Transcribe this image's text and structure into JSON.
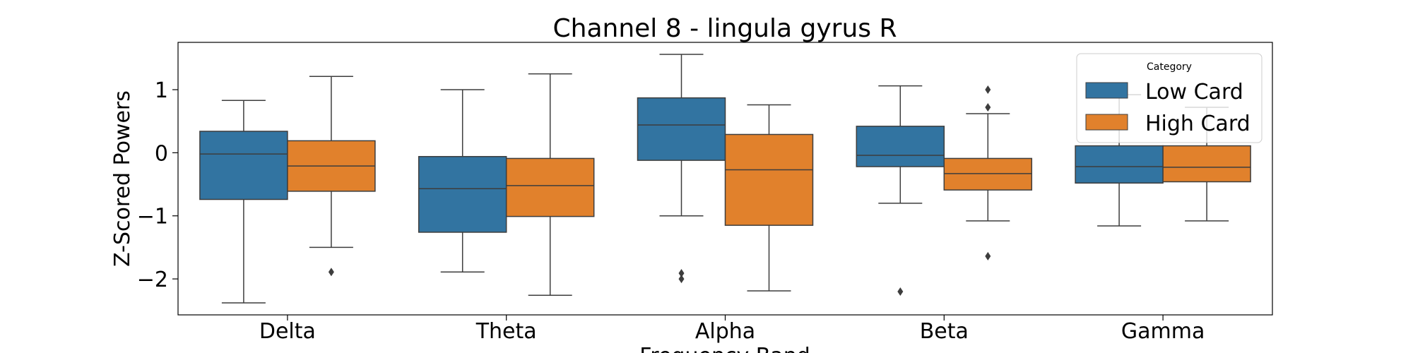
{
  "chart_data": {
    "type": "boxplot",
    "title": "Channel 8 - lingula gyrus R",
    "xlabel": "Frequency Band",
    "ylabel": "Z-Scored Powers",
    "ylim": [
      -2.57,
      1.75
    ],
    "yticks": [
      1,
      0,
      -1,
      -2
    ],
    "ytick_labels": [
      "1",
      "0",
      "−1",
      "−2"
    ],
    "categories": [
      "Delta",
      "Theta",
      "Alpha",
      "Beta",
      "Gamma"
    ],
    "legend": {
      "title": "Category",
      "placement": "upper right"
    },
    "series": [
      {
        "name": "Low Card",
        "color": "#3274a1",
        "boxes": [
          {
            "whisker_low": -2.38,
            "q1": -0.74,
            "median": -0.02,
            "q3": 0.34,
            "whisker_high": 0.83,
            "outliers": []
          },
          {
            "whisker_low": -1.89,
            "q1": -1.26,
            "median": -0.57,
            "q3": -0.06,
            "whisker_high": 1.0,
            "outliers": []
          },
          {
            "whisker_low": -1.0,
            "q1": -0.12,
            "median": 0.44,
            "q3": 0.87,
            "whisker_high": 1.56,
            "outliers": [
              -1.91,
              -2.0
            ]
          },
          {
            "whisker_low": -0.8,
            "q1": -0.22,
            "median": -0.04,
            "q3": 0.42,
            "whisker_high": 1.06,
            "outliers": [
              -2.2
            ]
          },
          {
            "whisker_low": -1.16,
            "q1": -0.48,
            "median": -0.22,
            "q3": 0.11,
            "whisker_high": 0.92,
            "outliers": []
          }
        ]
      },
      {
        "name": "High Card",
        "color": "#e1812c",
        "boxes": [
          {
            "whisker_low": -1.5,
            "q1": -0.61,
            "median": -0.21,
            "q3": 0.19,
            "whisker_high": 1.21,
            "outliers": [
              -1.89
            ]
          },
          {
            "whisker_low": -2.26,
            "q1": -1.01,
            "median": -0.52,
            "q3": -0.09,
            "whisker_high": 1.25,
            "outliers": []
          },
          {
            "whisker_low": -2.19,
            "q1": -1.15,
            "median": -0.27,
            "q3": 0.29,
            "whisker_high": 0.76,
            "outliers": []
          },
          {
            "whisker_low": -1.08,
            "q1": -0.59,
            "median": -0.33,
            "q3": -0.09,
            "whisker_high": 0.62,
            "outliers": [
              0.72,
              1.0,
              -1.64
            ]
          },
          {
            "whisker_low": -1.08,
            "q1": -0.46,
            "median": -0.23,
            "q3": 0.11,
            "whisker_high": 0.72,
            "outliers": []
          }
        ]
      }
    ]
  }
}
